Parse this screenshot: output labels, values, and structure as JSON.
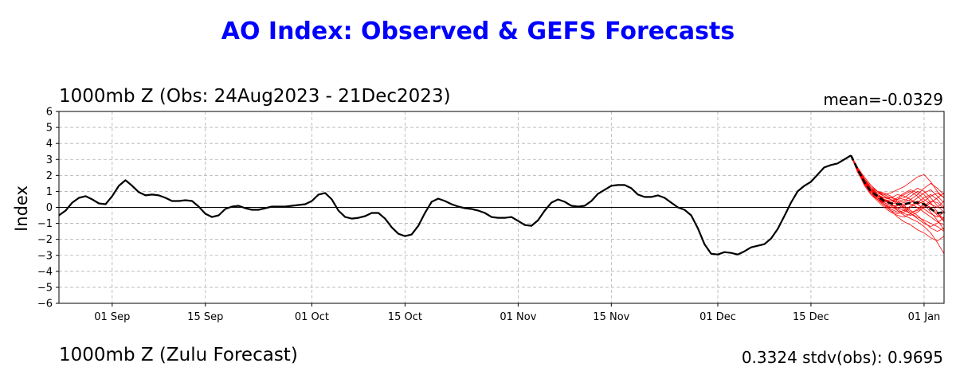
{
  "page": {
    "title": "AO Index: Observed & GEFS Forecasts",
    "title_color": "#0000ff",
    "next_panel_title": "1000mb Z (Zulu Forecast)",
    "next_panel_right": "0.3324   stdv(obs): 0.9695"
  },
  "chart_data": {
    "type": "line",
    "title": "1000mb Z (Obs: 24Aug2023 - 21Dec2023)",
    "annotation": "mean=-0.0329",
    "xlabel": "",
    "ylabel": "Index",
    "ylim": [
      -6,
      6
    ],
    "yticks": [
      -6,
      -5,
      -4,
      -3,
      -2,
      -1,
      0,
      1,
      2,
      3,
      4,
      5,
      6
    ],
    "xlim": [
      "2023-08-24",
      "2024-01-04"
    ],
    "xticks": [
      {
        "date": "2023-09-01",
        "label": "01 Sep"
      },
      {
        "date": "2023-09-15",
        "label": "15 Sep"
      },
      {
        "date": "2023-10-01",
        "label": "01 Oct"
      },
      {
        "date": "2023-10-15",
        "label": "15 Oct"
      },
      {
        "date": "2023-11-01",
        "label": "01 Nov"
      },
      {
        "date": "2023-11-15",
        "label": "15 Nov"
      },
      {
        "date": "2023-12-01",
        "label": "01 Dec"
      },
      {
        "date": "2023-12-15",
        "label": "15 Dec"
      },
      {
        "date": "2024-01-01",
        "label": "01 Jan"
      }
    ],
    "grid": true,
    "zero_line": true,
    "observed": {
      "color": "#000000",
      "start_date": "2023-08-24",
      "values": [
        -0.5,
        -0.2,
        0.3,
        0.6,
        0.7,
        0.5,
        0.25,
        0.2,
        0.7,
        1.35,
        1.7,
        1.35,
        0.95,
        0.75,
        0.8,
        0.75,
        0.6,
        0.4,
        0.4,
        0.45,
        0.4,
        0.05,
        -0.4,
        -0.6,
        -0.5,
        -0.1,
        0.05,
        0.1,
        -0.05,
        -0.15,
        -0.15,
        -0.05,
        0.05,
        0.05,
        0.05,
        0.1,
        0.15,
        0.2,
        0.4,
        0.8,
        0.9,
        0.5,
        -0.2,
        -0.6,
        -0.7,
        -0.65,
        -0.55,
        -0.35,
        -0.35,
        -0.7,
        -1.25,
        -1.65,
        -1.8,
        -1.7,
        -1.15,
        -0.35,
        0.35,
        0.55,
        0.4,
        0.2,
        0.05,
        -0.05,
        -0.1,
        -0.2,
        -0.35,
        -0.6,
        -0.65,
        -0.65,
        -0.6,
        -0.85,
        -1.1,
        -1.15,
        -0.8,
        -0.2,
        0.3,
        0.5,
        0.35,
        0.1,
        0.05,
        0.1,
        0.4,
        0.85,
        1.1,
        1.35,
        1.4,
        1.4,
        1.2,
        0.8,
        0.65,
        0.65,
        0.75,
        0.6,
        0.3,
        0.0,
        -0.15,
        -0.5,
        -1.3,
        -2.3,
        -2.9,
        -2.95,
        -2.8,
        -2.85,
        -2.95,
        -2.75,
        -2.5,
        -2.4,
        -2.3,
        -1.95,
        -1.35,
        -0.55,
        0.3,
        1.0,
        1.35,
        1.6,
        2.05,
        2.5,
        2.65,
        2.75,
        3.0,
        3.25
      ]
    },
    "ensemble_mean": {
      "color": "#000000",
      "style": "dashed",
      "start_date": "2023-12-21",
      "values": [
        3.25,
        2.4,
        1.6,
        1.0,
        0.7,
        0.4,
        0.25,
        0.2,
        0.2,
        0.3,
        0.3,
        0.2,
        -0.1,
        -0.35,
        -0.3,
        -0.25,
        -0.3,
        -0.35,
        -0.35
      ]
    },
    "members": {
      "color": "#ff0000",
      "start_date": "2023-12-21",
      "series": [
        [
          3.25,
          2.2,
          1.5,
          1.1,
          0.9,
          0.8,
          0.9,
          1.1,
          1.3,
          1.6,
          1.9,
          2.05,
          1.6,
          1.0,
          0.6,
          0.2,
          -0.1,
          -0.5,
          -0.9
        ],
        [
          3.25,
          2.3,
          1.4,
          0.8,
          0.5,
          0.2,
          -0.1,
          -0.3,
          -0.2,
          0.1,
          0.4,
          0.2,
          -0.3,
          -0.8,
          -1.4,
          -1.8,
          -2.0,
          -1.6,
          -1.2
        ],
        [
          3.25,
          2.5,
          1.8,
          1.2,
          0.8,
          0.5,
          0.4,
          0.6,
          0.9,
          1.1,
          0.9,
          0.5,
          0.2,
          0.0,
          0.4,
          0.9,
          1.3,
          1.7,
          1.95
        ],
        [
          3.25,
          2.4,
          1.5,
          0.9,
          0.5,
          0.3,
          0.1,
          -0.2,
          -0.5,
          -0.7,
          -0.9,
          -1.2,
          -1.6,
          -2.2,
          -2.9,
          -3.1,
          -2.8,
          -2.6,
          -2.9
        ],
        [
          3.25,
          2.5,
          1.7,
          1.1,
          0.6,
          0.2,
          0.0,
          -0.1,
          0.1,
          0.3,
          0.6,
          0.9,
          1.1,
          0.7,
          0.3,
          0.1,
          0.3,
          0.5,
          0.4
        ],
        [
          3.25,
          2.3,
          1.6,
          1.2,
          1.0,
          0.9,
          0.7,
          0.4,
          0.1,
          -0.2,
          -0.5,
          -0.9,
          -1.3,
          -1.5,
          -1.3,
          -1.0,
          -0.6,
          -0.3,
          -0.1
        ],
        [
          3.25,
          2.4,
          1.6,
          1.0,
          0.6,
          0.4,
          0.2,
          0.0,
          -0.2,
          -0.4,
          -0.6,
          -0.8,
          -1.0,
          -1.2,
          -1.5,
          -1.7,
          -1.4,
          -0.9,
          -0.5
        ],
        [
          3.25,
          2.5,
          1.9,
          1.4,
          1.0,
          0.7,
          0.5,
          0.3,
          0.4,
          0.7,
          1.0,
          0.8,
          0.3,
          -0.3,
          -0.9,
          -1.2,
          -0.8,
          -0.2,
          0.3
        ],
        [
          3.25,
          2.3,
          1.5,
          0.9,
          0.5,
          0.1,
          -0.2,
          -0.4,
          -0.3,
          0.0,
          0.3,
          0.6,
          0.8,
          0.5,
          0.0,
          -0.4,
          -0.7,
          -1.0,
          -1.3
        ],
        [
          3.25,
          2.4,
          1.7,
          1.2,
          0.8,
          0.6,
          0.6,
          0.8,
          0.7,
          0.5,
          0.2,
          -0.1,
          -0.4,
          -0.6,
          -0.3,
          0.2,
          0.7,
          1.1,
          0.8
        ],
        [
          3.25,
          2.5,
          1.8,
          1.1,
          0.6,
          0.2,
          -0.2,
          -0.6,
          -0.9,
          -1.1,
          -1.4,
          -1.6,
          -1.9,
          -2.1,
          -1.8,
          -1.5,
          -1.3,
          -1.6,
          -1.9
        ],
        [
          3.25,
          2.3,
          1.5,
          1.0,
          0.7,
          0.5,
          0.3,
          0.2,
          0.3,
          0.5,
          0.8,
          1.2,
          1.5,
          1.2,
          0.8,
          0.6,
          0.4,
          0.1,
          -0.2
        ],
        [
          3.25,
          2.4,
          1.6,
          1.0,
          0.6,
          0.3,
          0.1,
          0.1,
          0.2,
          0.2,
          0.0,
          -0.3,
          -0.6,
          -0.9,
          -1.1,
          -0.8,
          -0.4,
          0.0,
          0.4
        ],
        [
          3.25,
          2.5,
          1.8,
          1.3,
          1.0,
          0.8,
          0.6,
          0.5,
          0.6,
          0.9,
          1.2,
          1.0,
          0.6,
          0.1,
          -0.3,
          -0.6,
          -0.9,
          -1.2,
          -1.4
        ],
        [
          3.25,
          2.3,
          1.4,
          0.8,
          0.4,
          0.0,
          -0.3,
          -0.5,
          -0.6,
          -0.4,
          -0.1,
          0.2,
          0.0,
          -0.4,
          -0.7,
          -0.5,
          -0.2,
          0.1,
          0.3
        ],
        [
          3.25,
          2.4,
          1.7,
          1.1,
          0.7,
          0.4,
          0.3,
          0.4,
          0.5,
          0.4,
          0.2,
          0.4,
          0.7,
          0.9,
          0.6,
          0.2,
          -0.2,
          -0.4,
          -0.6
        ],
        [
          3.25,
          2.5,
          1.6,
          1.0,
          0.7,
          0.6,
          0.5,
          0.3,
          0.0,
          -0.3,
          -0.2,
          0.1,
          0.4,
          0.3,
          -0.1,
          -0.6,
          -1.1,
          -1.4,
          -1.1
        ],
        [
          3.25,
          2.3,
          1.6,
          1.1,
          0.8,
          0.5,
          0.2,
          -0.1,
          -0.4,
          -0.5,
          -0.3,
          0.0,
          0.3,
          0.6,
          0.9,
          1.2,
          1.0,
          0.6,
          0.2
        ],
        [
          3.25,
          2.4,
          1.5,
          0.9,
          0.6,
          0.4,
          0.4,
          0.5,
          0.8,
          1.0,
          0.7,
          0.3,
          -0.1,
          -0.5,
          -0.8,
          -1.0,
          -0.7,
          -0.3,
          0.0
        ],
        [
          3.25,
          2.5,
          1.7,
          1.2,
          0.9,
          0.7,
          0.5,
          0.2,
          -0.1,
          -0.4,
          -0.7,
          -1.0,
          -1.2,
          -1.0,
          -0.6,
          -0.3,
          -0.5,
          -0.8,
          -1.0
        ]
      ]
    }
  }
}
